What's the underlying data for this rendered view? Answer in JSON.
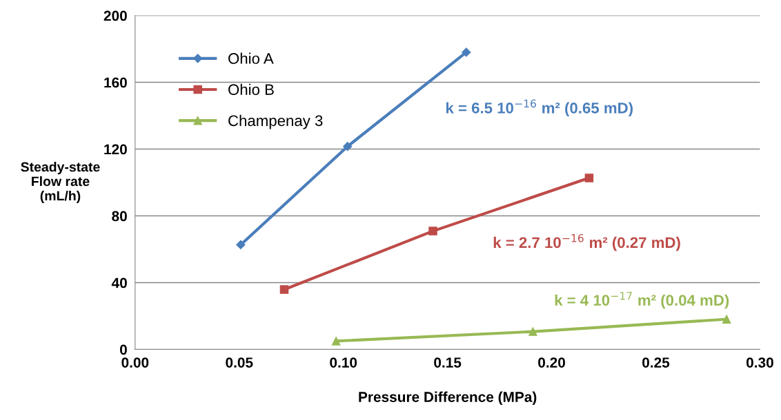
{
  "chart_data": {
    "type": "line",
    "xlabel": "Pressure Difference (MPa)",
    "ylabel": "Steady-state\nFlow rate\n(mL/h)",
    "xlim": [
      0,
      0.3
    ],
    "ylim": [
      0,
      200
    ],
    "xticks": [
      {
        "value": 0,
        "label": "0.00"
      },
      {
        "value": 0.05,
        "label": "0.05"
      },
      {
        "value": 0.1,
        "label": "0.10"
      },
      {
        "value": 0.15,
        "label": "0.15"
      },
      {
        "value": 0.2,
        "label": "0.20"
      },
      {
        "value": 0.25,
        "label": "0.25"
      },
      {
        "value": 0.3,
        "label": "0.30"
      }
    ],
    "yticks": [
      0,
      40,
      80,
      120,
      160,
      200
    ],
    "grid": "y",
    "legend": "top left",
    "series": [
      {
        "name": "Ohio A",
        "color": "#4a7ebb",
        "marker": "diamond",
        "x": [
          0.0507,
          0.102,
          0.159
        ],
        "values": [
          62.7,
          121.6,
          178
        ]
      },
      {
        "name": "Ohio B",
        "color": "#be4b48",
        "marker": "square",
        "x": [
          0.0716,
          0.143,
          0.218
        ],
        "values": [
          35.9,
          70.9,
          102.7
        ]
      },
      {
        "name": "Champenay 3",
        "color": "#98b954",
        "marker": "triangle",
        "x": [
          0.0965,
          0.191,
          0.284
        ],
        "values": [
          5,
          10.7,
          18.1
        ]
      }
    ],
    "annotations": [
      "k = 6.5 10$^{−16}$ m² (0.65 mD)",
      "k = 2.7 10$^{−16}$ m² (0.27 mD)",
      "k = 4 10$^{−17}$ m² (0.04 mD)"
    ]
  }
}
